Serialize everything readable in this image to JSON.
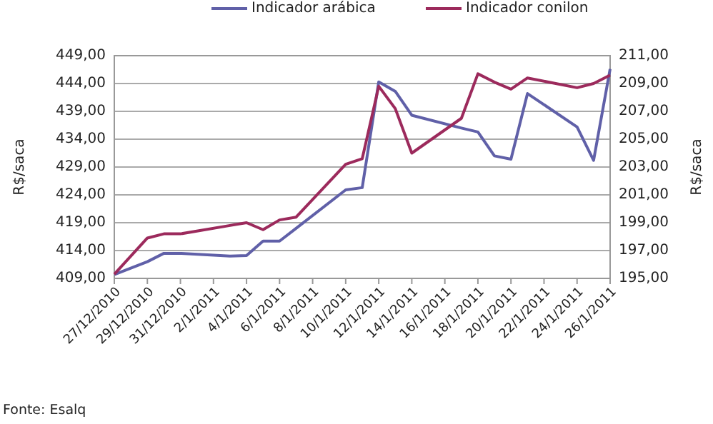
{
  "chart_data": {
    "type": "line",
    "ylabel": "R$/saca",
    "y2label": "R$/saca",
    "legend": "top",
    "grid": "y",
    "marker": "none",
    "line_style": "solid",
    "xlim": [
      "2010-12-27",
      "2011-01-26"
    ],
    "xticks": [
      {
        "value": "2010-12-27",
        "label": "27/12/2010"
      },
      {
        "value": "2010-12-29",
        "label": "29/12/2010"
      },
      {
        "value": "2010-12-31",
        "label": "31/12/2010"
      },
      {
        "value": "2011-01-02",
        "label": "2/1/2011"
      },
      {
        "value": "2011-01-04",
        "label": "4/1/2011"
      },
      {
        "value": "2011-01-06",
        "label": "6/1/2011"
      },
      {
        "value": "2011-01-08",
        "label": "8/1/2011"
      },
      {
        "value": "2011-01-10",
        "label": "10/1/2011"
      },
      {
        "value": "2011-01-12",
        "label": "12/1/2011"
      },
      {
        "value": "2011-01-14",
        "label": "14/1/2011"
      },
      {
        "value": "2011-01-16",
        "label": "16/1/2011"
      },
      {
        "value": "2011-01-18",
        "label": "18/1/2011"
      },
      {
        "value": "2011-01-20",
        "label": "20/1/2011"
      },
      {
        "value": "2011-01-22",
        "label": "22/1/2011"
      },
      {
        "value": "2011-01-24",
        "label": "24/1/2011"
      },
      {
        "value": "2011-01-26",
        "label": "26/1/2011"
      }
    ],
    "ylim": [
      409,
      449
    ],
    "yticks": [
      {
        "value": 409,
        "label": "409,00"
      },
      {
        "value": 414,
        "label": "414,00"
      },
      {
        "value": 419,
        "label": "419,00"
      },
      {
        "value": 424,
        "label": "424,00"
      },
      {
        "value": 429,
        "label": "429,00"
      },
      {
        "value": 434,
        "label": "434,00"
      },
      {
        "value": 439,
        "label": "439,00"
      },
      {
        "value": 444,
        "label": "444,00"
      },
      {
        "value": 449,
        "label": "449,00"
      }
    ],
    "y2lim": [
      195,
      211
    ],
    "y2ticks": [
      {
        "value": 195,
        "label": "195,00"
      },
      {
        "value": 197,
        "label": "197,00"
      },
      {
        "value": 199,
        "label": "199,00"
      },
      {
        "value": 201,
        "label": "201,00"
      },
      {
        "value": 203,
        "label": "203,00"
      },
      {
        "value": 205,
        "label": "205,00"
      },
      {
        "value": 207,
        "label": "207,00"
      },
      {
        "value": 209,
        "label": "209,00"
      },
      {
        "value": 211,
        "label": "211,00"
      }
    ],
    "x": [
      "2010-12-27",
      "2010-12-29",
      "2010-12-30",
      "2010-12-31",
      "2011-01-03",
      "2011-01-04",
      "2011-01-05",
      "2011-01-06",
      "2011-01-07",
      "2011-01-10",
      "2011-01-11",
      "2011-01-12",
      "2011-01-13",
      "2011-01-14",
      "2011-01-17",
      "2011-01-18",
      "2011-01-19",
      "2011-01-20",
      "2011-01-21",
      "2011-01-24",
      "2011-01-25",
      "2011-01-26"
    ],
    "series": [
      {
        "name": "Indicador arábica",
        "color": "#6060a8",
        "values": [
          409.7,
          412,
          413.5,
          413.5,
          413,
          413.1,
          415.7,
          415.7,
          418,
          424.9,
          425.3,
          444.3,
          442.6,
          438.3,
          436,
          435.3,
          431,
          430.4,
          442.2,
          436.2,
          430.2,
          446.6
        ]
      },
      {
        "name": "Indicador conilon",
        "color": "#9c2a5c",
        "axis": "y2",
        "values": [
          195.3,
          197.9,
          198.2,
          198.2,
          198.8,
          199,
          198.5,
          199.2,
          199.4,
          203.2,
          203.6,
          208.8,
          207.2,
          204,
          206.5,
          209.7,
          209.1,
          208.6,
          209.4,
          208.7,
          209,
          209.6
        ]
      }
    ],
    "annotations": [
      "Fonte: Esalq"
    ]
  }
}
